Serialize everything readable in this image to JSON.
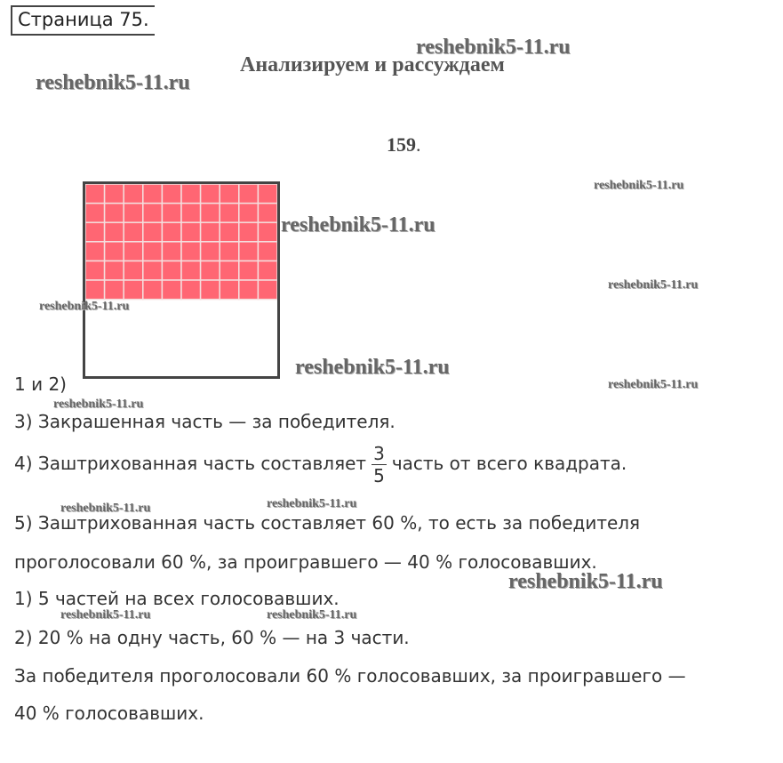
{
  "page_label": "Страница 75.",
  "section_title": "Анализируем и рассуждаем",
  "exercise_number": "159",
  "exercise_number_suffix": ".",
  "watermark": "reshebnik5-11.ru",
  "figure": {
    "columns": 10,
    "rows": 10,
    "shaded_rows": 6,
    "shaded_fraction": 0.6,
    "shade_color": "#ff6673",
    "grid_line_color": "#f4dede",
    "border_color": "#444444"
  },
  "lines": {
    "l1": "1 и 2)",
    "l3": "3) Закрашенная часть — за победителя.",
    "l4_before": "4) Заштрихованная часть составляет",
    "l4_num": "3",
    "l4_den": "5",
    "l4_after": "часть от всего квадрата.",
    "l5a": "5) Заштрихованная часть составляет 60 %, то есть за победителя",
    "l5b": "проголосовали 60 %, за проигравшего — 40 % голосовавших.",
    "l6": "1) 5 частей на всех голосовавших.",
    "l7": "2) 20 % на одну часть, 60 % — на 3 части.",
    "l8a": "За победителя проголосовали 60 % голосовавших, за проигравшего —",
    "l8b": "40 % голосовавших."
  }
}
